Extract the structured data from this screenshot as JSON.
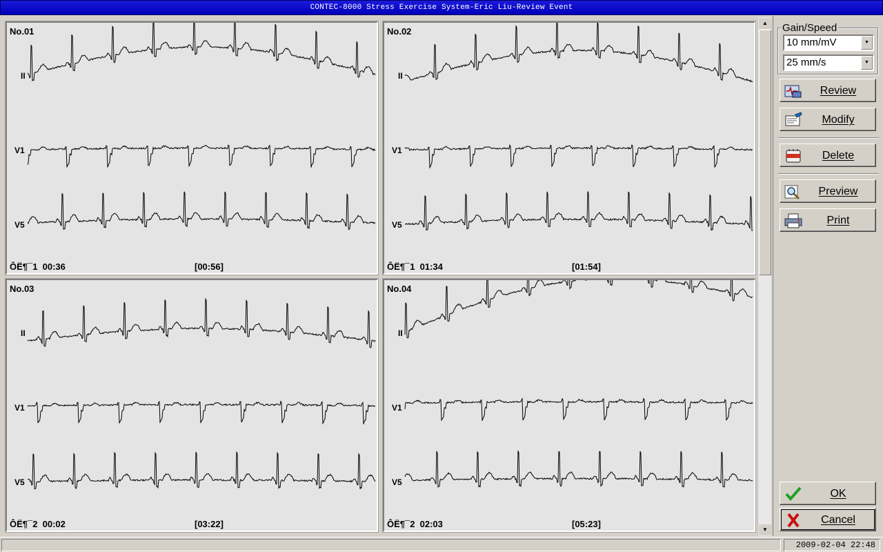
{
  "window": {
    "title": "CONTEC-8000 Stress Exercise System-Eric Liu-Review Event"
  },
  "panels": [
    {
      "number": "No.01",
      "leads": [
        "II",
        "V1",
        "V5"
      ],
      "footer_left": "ÔË¶¯1  00:36",
      "footer_right": "[00:56]"
    },
    {
      "number": "No.02",
      "leads": [
        "II",
        "V1",
        "V5"
      ],
      "footer_left": "ÔË¶¯1  01:34",
      "footer_right": "[01:54]"
    },
    {
      "number": "No.03",
      "leads": [
        "II",
        "V1",
        "V5"
      ],
      "footer_left": "ÔË¶¯2  00:02",
      "footer_right": "[03:22]"
    },
    {
      "number": "No.04",
      "leads": [
        "II",
        "V1",
        "V5"
      ],
      "footer_left": "ÔË¶¯2  02:03",
      "footer_right": "[05:23]"
    }
  ],
  "sidebar": {
    "group_title": "Gain/Speed",
    "gain_value": "10 mm/mV",
    "speed_value": "25 mm/s",
    "buttons": {
      "review": "Review",
      "modify": "Modify",
      "delete": "Delete",
      "preview": "Preview",
      "print": "Print",
      "ok": "OK",
      "cancel": "Cancel"
    }
  },
  "status": {
    "datetime": "2009-02-04 22:48"
  },
  "colors": {
    "title_bar": "#0000c8",
    "trace": "#000000",
    "panel_bg": "#e4e4e4"
  }
}
